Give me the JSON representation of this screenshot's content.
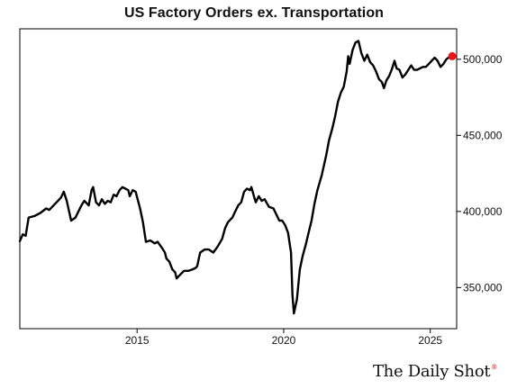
{
  "header": {
    "title": "US Factory Orders ex. Transportation"
  },
  "brand": {
    "name": "The Daily Shot",
    "mark": "®"
  },
  "colors": {
    "line": "#000000",
    "last_point": "#e8161b",
    "axis": "#000000",
    "background": "#ffffff"
  },
  "chart_data": {
    "type": "line",
    "title": "US Factory Orders ex. Transportation",
    "xlabel": "",
    "ylabel": "",
    "xlim": [
      2011.0,
      2025.9
    ],
    "ylim": [
      323000,
      520000
    ],
    "x_ticks": [
      2015,
      2020,
      2025
    ],
    "x_tick_labels": [
      "2015",
      "2020",
      "2025"
    ],
    "y_ticks": [
      350000,
      400000,
      450000,
      500000
    ],
    "y_tick_labels": [
      "350,000",
      "400,000",
      "450,000",
      "500,000"
    ],
    "y_axis_side": "right",
    "grid": false,
    "legend": "none",
    "highlight_last_point": true,
    "series": [
      {
        "values": [
          [
            2011.0,
            380500
          ],
          [
            2011.1,
            385000
          ],
          [
            2011.2,
            384000
          ],
          [
            2011.3,
            396000
          ],
          [
            2011.5,
            397000
          ],
          [
            2011.7,
            399000
          ],
          [
            2011.9,
            402000
          ],
          [
            2012.0,
            401000
          ],
          [
            2012.2,
            405000
          ],
          [
            2012.4,
            409000
          ],
          [
            2012.5,
            413000
          ],
          [
            2012.6,
            407000
          ],
          [
            2012.75,
            394000
          ],
          [
            2012.9,
            396000
          ],
          [
            2013.0,
            400000
          ],
          [
            2013.1,
            404000
          ],
          [
            2013.2,
            407000
          ],
          [
            2013.35,
            404000
          ],
          [
            2013.45,
            414000
          ],
          [
            2013.5,
            416000
          ],
          [
            2013.6,
            406000
          ],
          [
            2013.7,
            404000
          ],
          [
            2013.8,
            408000
          ],
          [
            2013.9,
            405000
          ],
          [
            2014.0,
            407000
          ],
          [
            2014.1,
            406000
          ],
          [
            2014.2,
            411000
          ],
          [
            2014.3,
            410000
          ],
          [
            2014.4,
            414000
          ],
          [
            2014.5,
            416000
          ],
          [
            2014.6,
            415000
          ],
          [
            2014.7,
            414000
          ],
          [
            2014.75,
            410000
          ],
          [
            2014.85,
            414000
          ],
          [
            2014.95,
            413000
          ],
          [
            2015.1,
            402000
          ],
          [
            2015.2,
            393000
          ],
          [
            2015.3,
            380000
          ],
          [
            2015.45,
            381000
          ],
          [
            2015.6,
            379000
          ],
          [
            2015.7,
            380000
          ],
          [
            2015.85,
            376000
          ],
          [
            2015.95,
            373000
          ],
          [
            2016.0,
            369000
          ],
          [
            2016.1,
            367000
          ],
          [
            2016.2,
            362000
          ],
          [
            2016.3,
            360000
          ],
          [
            2016.35,
            356000
          ],
          [
            2016.5,
            359000
          ],
          [
            2016.6,
            361000
          ],
          [
            2016.75,
            361000
          ],
          [
            2016.9,
            362000
          ],
          [
            2017.0,
            363000
          ],
          [
            2017.05,
            364000
          ],
          [
            2017.15,
            373000
          ],
          [
            2017.3,
            375000
          ],
          [
            2017.45,
            375000
          ],
          [
            2017.6,
            373000
          ],
          [
            2017.75,
            377000
          ],
          [
            2017.9,
            382000
          ],
          [
            2018.0,
            389000
          ],
          [
            2018.1,
            393000
          ],
          [
            2018.25,
            396000
          ],
          [
            2018.35,
            400000
          ],
          [
            2018.45,
            404000
          ],
          [
            2018.55,
            406000
          ],
          [
            2018.65,
            413000
          ],
          [
            2018.75,
            415000
          ],
          [
            2018.85,
            414000
          ],
          [
            2018.9,
            416000
          ],
          [
            2019.0,
            409000
          ],
          [
            2019.05,
            406000
          ],
          [
            2019.15,
            410000
          ],
          [
            2019.25,
            407000
          ],
          [
            2019.35,
            408000
          ],
          [
            2019.5,
            403000
          ],
          [
            2019.65,
            402000
          ],
          [
            2019.75,
            398000
          ],
          [
            2019.85,
            394000
          ],
          [
            2019.95,
            394000
          ],
          [
            2020.05,
            391000
          ],
          [
            2020.15,
            386000
          ],
          [
            2020.25,
            373000
          ],
          [
            2020.3,
            345000
          ],
          [
            2020.35,
            333000
          ],
          [
            2020.45,
            342000
          ],
          [
            2020.55,
            362000
          ],
          [
            2020.65,
            371000
          ],
          [
            2020.75,
            378000
          ],
          [
            2020.85,
            386000
          ],
          [
            2020.95,
            394000
          ],
          [
            2021.05,
            405000
          ],
          [
            2021.15,
            414000
          ],
          [
            2021.3,
            424000
          ],
          [
            2021.45,
            437000
          ],
          [
            2021.55,
            447000
          ],
          [
            2021.65,
            454000
          ],
          [
            2021.75,
            462000
          ],
          [
            2021.85,
            472000
          ],
          [
            2021.95,
            478000
          ],
          [
            2022.05,
            482000
          ],
          [
            2022.15,
            492000
          ],
          [
            2022.2,
            502000
          ],
          [
            2022.25,
            497000
          ],
          [
            2022.35,
            506000
          ],
          [
            2022.45,
            511000
          ],
          [
            2022.55,
            512000
          ],
          [
            2022.65,
            504000
          ],
          [
            2022.75,
            499000
          ],
          [
            2022.85,
            503000
          ],
          [
            2022.95,
            498000
          ],
          [
            2023.05,
            496000
          ],
          [
            2023.15,
            492000
          ],
          [
            2023.25,
            487000
          ],
          [
            2023.35,
            485000
          ],
          [
            2023.42,
            481000
          ],
          [
            2023.5,
            486000
          ],
          [
            2023.6,
            489000
          ],
          [
            2023.7,
            494000
          ],
          [
            2023.78,
            499000
          ],
          [
            2023.85,
            494000
          ],
          [
            2023.95,
            493000
          ],
          [
            2024.05,
            488000
          ],
          [
            2024.15,
            490000
          ],
          [
            2024.25,
            493000
          ],
          [
            2024.35,
            496000
          ],
          [
            2024.45,
            493000
          ],
          [
            2024.55,
            493000
          ],
          [
            2024.65,
            494000
          ],
          [
            2024.75,
            495000
          ],
          [
            2024.85,
            495000
          ],
          [
            2024.95,
            497000
          ],
          [
            2025.05,
            499000
          ],
          [
            2025.15,
            501000
          ],
          [
            2025.25,
            499000
          ],
          [
            2025.35,
            495000
          ],
          [
            2025.45,
            497000
          ],
          [
            2025.55,
            500000
          ],
          [
            2025.65,
            501500
          ],
          [
            2025.75,
            502000
          ]
        ]
      }
    ]
  }
}
